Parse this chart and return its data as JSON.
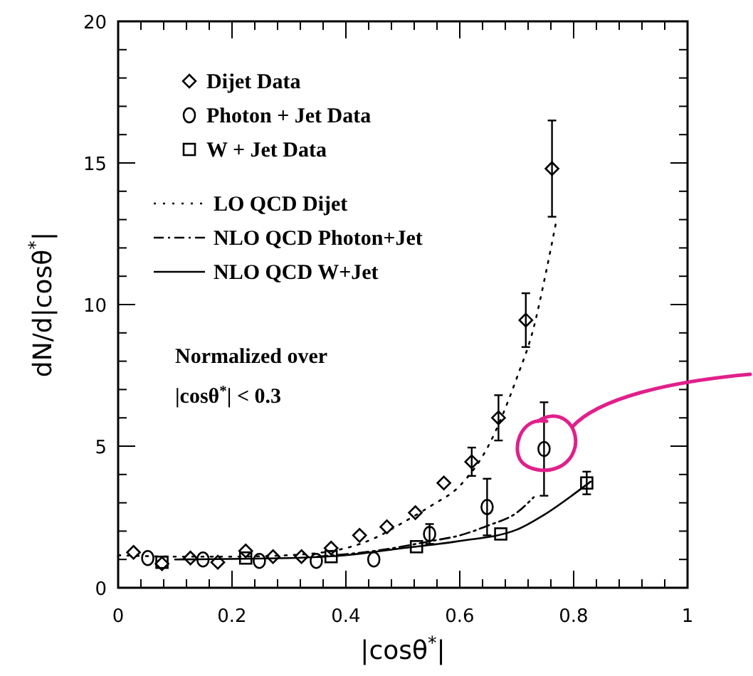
{
  "chart_data": {
    "type": "scatter",
    "xlabel": "|cosθ$^{*}$|",
    "ylabel": "dN/d|cosθ$^{*}$|",
    "xlim": [
      0,
      1
    ],
    "ylim": [
      0,
      20
    ],
    "xticks": [
      0,
      {
        "value": 0.04,
        "label": null
      },
      {
        "value": 0.08,
        "label": null
      },
      {
        "value": 0.12,
        "label": null
      },
      {
        "value": 0.16,
        "label": null
      },
      0.2,
      {
        "value": 0.24,
        "label": null
      },
      {
        "value": 0.28,
        "label": null
      },
      {
        "value": 0.32,
        "label": null
      },
      {
        "value": 0.36,
        "label": null
      },
      0.4,
      {
        "value": 0.44,
        "label": null
      },
      {
        "value": 0.48,
        "label": null
      },
      {
        "value": 0.52,
        "label": null
      },
      {
        "value": 0.56,
        "label": null
      },
      0.6,
      {
        "value": 0.64,
        "label": null
      },
      {
        "value": 0.68,
        "label": null
      },
      {
        "value": 0.72,
        "label": null
      },
      {
        "value": 0.76,
        "label": null
      },
      0.8,
      {
        "value": 0.84,
        "label": null
      },
      {
        "value": 0.88,
        "label": null
      },
      {
        "value": 0.92,
        "label": null
      },
      {
        "value": 0.96,
        "label": null
      },
      1
    ],
    "yticks": [
      0,
      {
        "value": 1,
        "label": null
      },
      {
        "value": 2,
        "label": null
      },
      {
        "value": 3,
        "label": null
      },
      {
        "value": 4,
        "label": null
      },
      5,
      {
        "value": 6,
        "label": null
      },
      {
        "value": 7,
        "label": null
      },
      {
        "value": 8,
        "label": null
      },
      {
        "value": 9,
        "label": null
      },
      10,
      {
        "value": 11,
        "label": null
      },
      {
        "value": 12,
        "label": null
      },
      {
        "value": 13,
        "label": null
      },
      {
        "value": 14,
        "label": null
      },
      15,
      {
        "value": 16,
        "label": null
      },
      {
        "value": 17,
        "label": null
      },
      {
        "value": 18,
        "label": null
      },
      {
        "value": 19,
        "label": null
      },
      20
    ],
    "grid": false,
    "legend": "top left",
    "annotations": [
      "Normalized over |cosθ$^{*}$| < 0.3"
    ],
    "series": [
      {
        "name": "Dijet Data",
        "marker": "diamond",
        "color": "#000000",
        "x": [
          0.027,
          0.077,
          0.127,
          0.175,
          0.224,
          0.272,
          0.322,
          0.374,
          0.424,
          0.472,
          0.522,
          0.572,
          0.621,
          0.668,
          0.716,
          0.762
        ],
        "values": [
          1.25,
          0.85,
          1.05,
          0.9,
          1.3,
          1.1,
          1.1,
          1.4,
          1.85,
          2.15,
          2.65,
          3.7,
          4.45,
          6.0,
          9.45,
          14.8
        ],
        "errors": [
          null,
          null,
          null,
          null,
          null,
          null,
          null,
          null,
          null,
          null,
          null,
          null,
          0.5,
          0.8,
          0.95,
          1.7
        ]
      },
      {
        "name": "Photon + Jet Data",
        "marker": "circle",
        "color": "#000000",
        "x": [
          0.052,
          0.149,
          0.248,
          0.348,
          0.449,
          0.547,
          0.648,
          0.748
        ],
        "values": [
          1.05,
          1.0,
          0.95,
          0.95,
          1.0,
          1.9,
          2.85,
          4.9
        ],
        "errors": [
          null,
          null,
          null,
          null,
          null,
          0.35,
          1.0,
          1.65
        ]
      },
      {
        "name": "W + Jet Data",
        "marker": "square",
        "color": "#000000",
        "x": [
          0.077,
          0.224,
          0.374,
          0.524,
          0.672,
          0.823
        ],
        "values": [
          0.9,
          1.05,
          1.1,
          1.45,
          1.9,
          3.7
        ],
        "errors": [
          null,
          null,
          null,
          null,
          null,
          0.4
        ]
      },
      {
        "name": "LO QCD Dijet",
        "type": "line",
        "line_style": "dotted",
        "color": "#000000",
        "x": [
          0.0,
          0.1,
          0.2,
          0.3,
          0.4,
          0.45,
          0.5,
          0.55,
          0.6,
          0.65,
          0.7,
          0.73,
          0.75,
          0.77
        ],
        "values": [
          1.15,
          1.1,
          1.1,
          1.15,
          1.4,
          1.75,
          2.3,
          2.9,
          3.6,
          5.0,
          7.4,
          9.2,
          11.0,
          13.0
        ]
      },
      {
        "name": "NLO QCD Photon+Jet",
        "type": "line",
        "line_style": "dashed",
        "color": "#000000",
        "x": [
          0.35,
          0.45,
          0.55,
          0.6,
          0.65,
          0.7,
          0.73
        ],
        "values": [
          1.1,
          1.3,
          1.65,
          1.85,
          2.2,
          2.65,
          3.2
        ]
      },
      {
        "name": "NLO QCD W+Jet",
        "type": "line",
        "line_style": "solid",
        "color": "#000000",
        "x": [
          0.1,
          0.3,
          0.4,
          0.5,
          0.6,
          0.7,
          0.75,
          0.8,
          0.83
        ],
        "values": [
          1.0,
          1.05,
          1.15,
          1.4,
          1.65,
          2.05,
          2.6,
          3.3,
          3.75
        ]
      }
    ]
  }
}
